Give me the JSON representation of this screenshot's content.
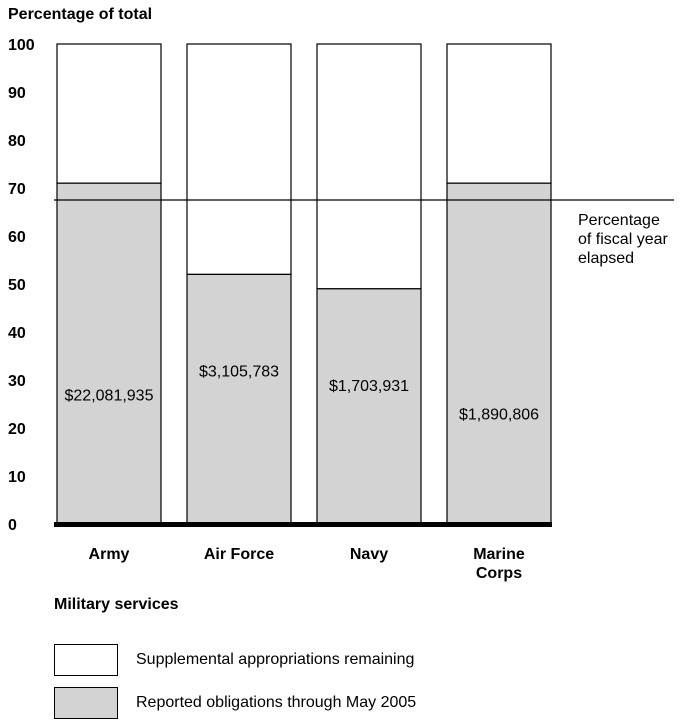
{
  "chart_data": {
    "type": "bar",
    "stacked": true,
    "ylabel": "Percentage of total",
    "xlabel": "Military services",
    "ylim": [
      0,
      100
    ],
    "yticks": [
      0,
      10,
      20,
      30,
      40,
      50,
      60,
      70,
      80,
      90,
      100
    ],
    "categories": [
      "Army",
      "Air Force",
      "Navy",
      "Marine Corps"
    ],
    "category_lines": [
      [
        "Army"
      ],
      [
        "Air Force"
      ],
      [
        "Navy"
      ],
      [
        "Marine",
        "Corps"
      ]
    ],
    "series": [
      {
        "name": "Reported obligations through May 2005",
        "values": [
          71,
          52,
          49,
          71
        ],
        "labels": [
          "$22,081,935",
          "$3,105,783",
          "$1,703,931",
          "$1,890,806"
        ],
        "label_positions": [
          27,
          32,
          29,
          23
        ],
        "color": "#d3d3d3"
      },
      {
        "name": "Supplemental appropriations remaining",
        "values": [
          29,
          48,
          51,
          29
        ],
        "color": "#ffffff"
      }
    ],
    "reference_line": {
      "value": 67.5,
      "label_lines": [
        "Percentage",
        "of fiscal year",
        "elapsed"
      ]
    },
    "legend": {
      "placement": "bottom-left",
      "items": [
        {
          "label": "Supplemental appropriations remaining",
          "color": "#ffffff"
        },
        {
          "label": "Reported obligations through May 2005",
          "color": "#d3d3d3"
        }
      ]
    }
  }
}
